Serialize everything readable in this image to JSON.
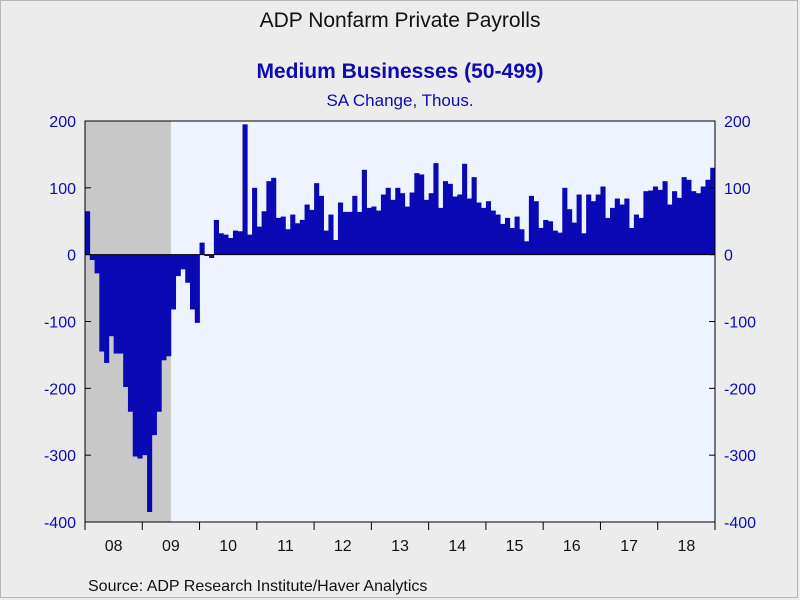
{
  "header": {
    "title": "ADP Nonfarm Private Payrolls",
    "subtitle": "Medium Businesses (50-499)",
    "units": "SA Change, Thous."
  },
  "footer": {
    "source": "Source:  ADP Research Institute/Haver Analytics"
  },
  "colors": {
    "bars": "#0a0ab4",
    "plot_background": "#eef4ff",
    "recession_shade": "#c8c8c8",
    "axis_text": "#0b0bb4",
    "page_background": "#ececec"
  },
  "chart_data": {
    "type": "bar",
    "title": "ADP Nonfarm Private Payrolls",
    "subtitle": "Medium Businesses (50-499)",
    "ylabel": "SA Change, Thous.",
    "ylim": [
      -400,
      200
    ],
    "yticks": [
      200,
      100,
      0,
      -100,
      -200,
      -300,
      -400
    ],
    "x_start": "2008-01",
    "x_end": "2018-12",
    "x_tick_labels": [
      "08",
      "09",
      "10",
      "11",
      "12",
      "13",
      "14",
      "15",
      "16",
      "17",
      "18"
    ],
    "recession_shading": {
      "start": "2008-01",
      "end": "2009-06"
    },
    "dual_y_axis": true,
    "grid": false,
    "series": [
      {
        "values": [
          65,
          -8,
          -28,
          -145,
          -162,
          -122,
          -148,
          -148,
          -198,
          -235,
          -302,
          -305,
          -300,
          -385,
          -270,
          -235,
          -158,
          -152,
          -82,
          -32,
          -22,
          -42,
          -82,
          -102,
          18,
          -2,
          -5,
          52,
          32,
          30,
          25,
          36,
          35,
          195,
          30,
          100,
          42,
          65,
          110,
          115,
          55,
          57,
          38,
          60,
          47,
          52,
          75,
          67,
          107,
          88,
          36,
          60,
          22,
          78,
          64,
          64,
          88,
          64,
          127,
          70,
          72,
          66,
          90,
          100,
          82,
          100,
          92,
          72,
          93,
          122,
          120,
          82,
          92,
          137,
          70,
          110,
          106,
          87,
          90,
          136,
          84,
          116,
          78,
          70,
          80,
          66,
          60,
          46,
          55,
          40,
          57,
          38,
          20,
          88,
          80,
          40,
          52,
          50,
          36,
          33,
          100,
          68,
          48,
          90,
          32,
          90,
          80,
          90,
          102,
          55,
          70,
          84,
          75,
          84,
          40,
          60,
          55,
          95,
          96,
          102,
          97,
          110,
          75,
          95,
          85,
          116,
          112,
          95,
          92,
          102,
          112,
          130
        ]
      }
    ]
  }
}
